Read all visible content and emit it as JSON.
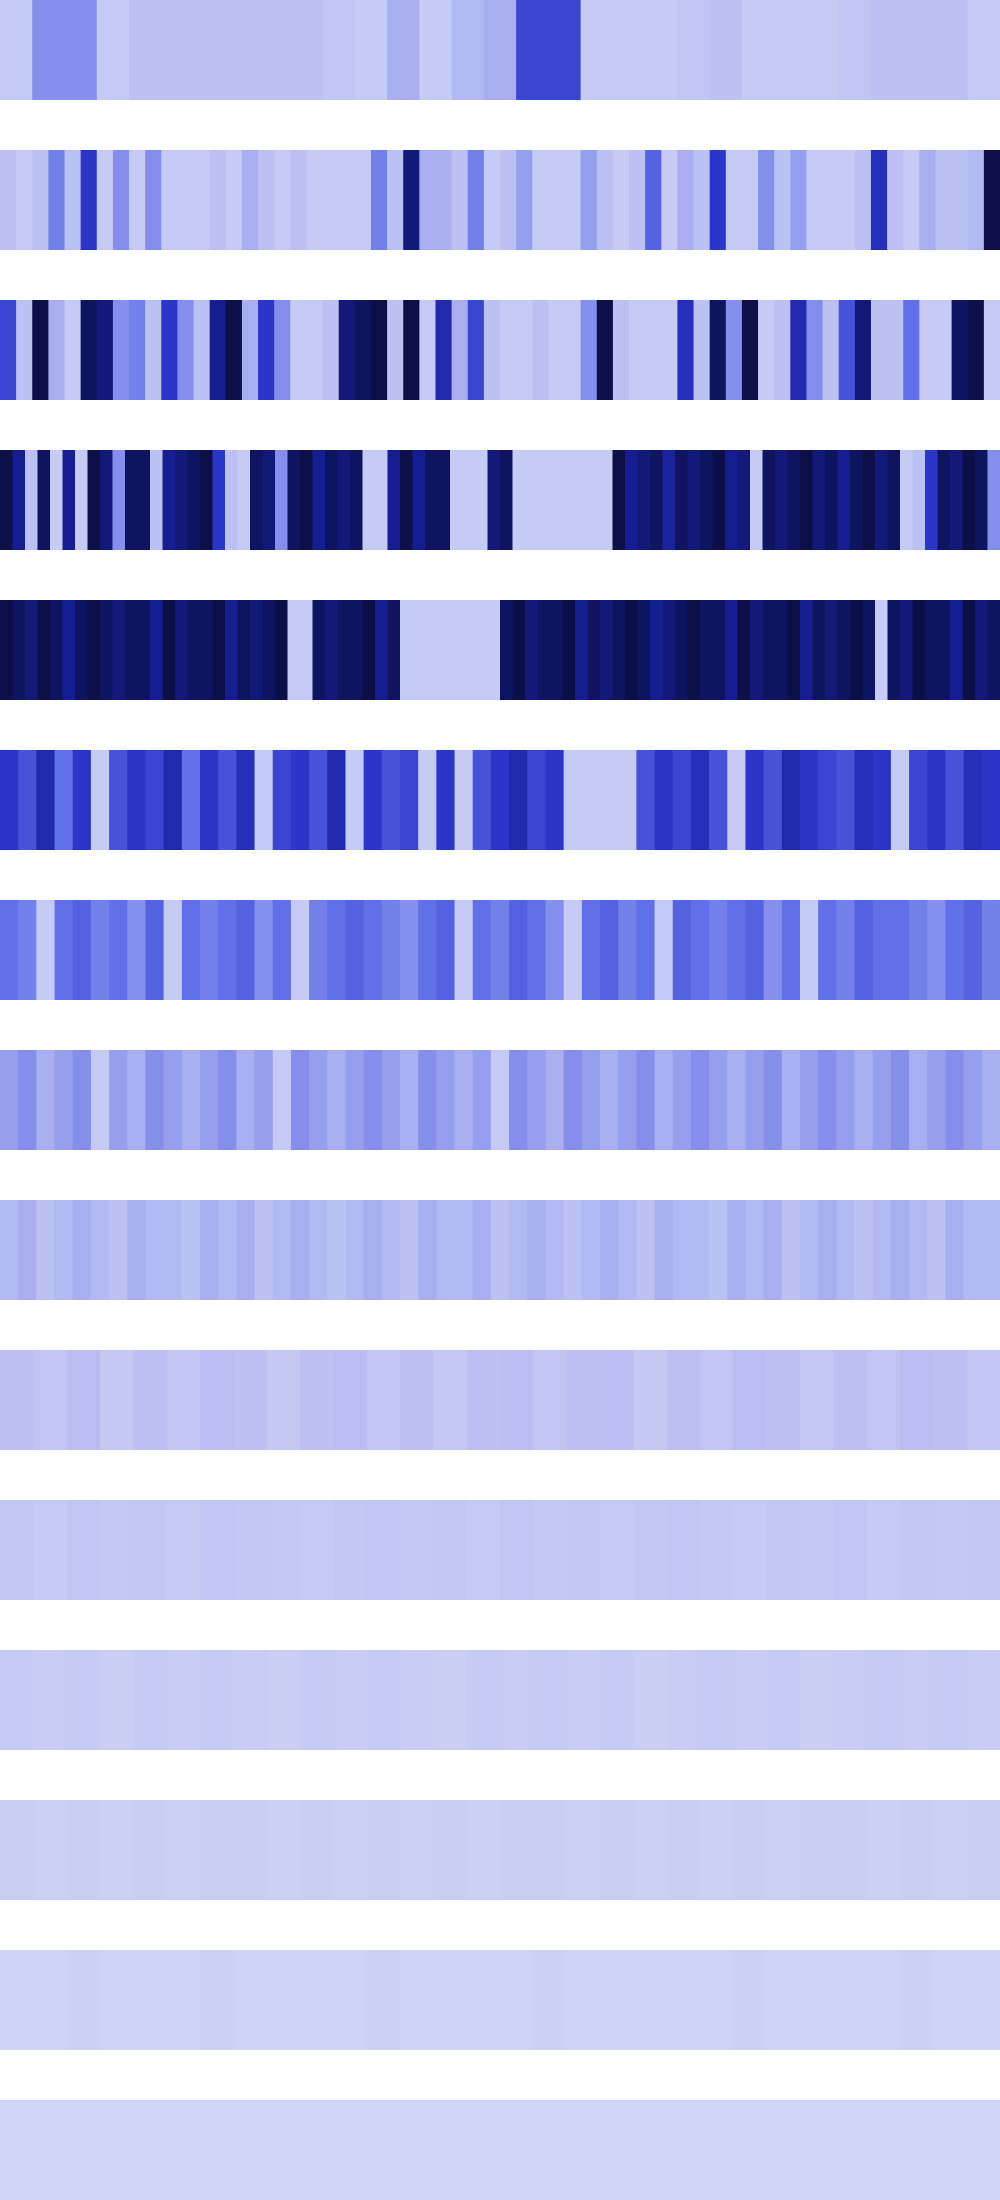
{
  "chart_data": {
    "type": "heatmap",
    "vmin": 0,
    "vmax": 1,
    "colorscale": [
      "#d0d4f6",
      "#a8aef0",
      "#6070e8",
      "#2a36c8",
      "#141e90",
      "#0a0a30"
    ],
    "rows": [
      {
        "values": [
          0.05,
          0.3,
          0.3,
          0.05,
          0.1,
          0.1,
          0.1,
          0.1,
          0.1,
          0.1,
          0.08,
          0.05,
          0.2,
          0.05,
          0.15,
          0.2,
          0.55,
          0.55,
          0.05,
          0.05,
          0.05,
          0.08,
          0.1,
          0.05,
          0.05,
          0.05,
          0.08,
          0.1,
          0.1,
          0.1,
          0.05
        ]
      },
      {
        "values": [
          0.1,
          0.05,
          0.1,
          0.35,
          0.1,
          0.6,
          0.05,
          0.3,
          0.05,
          0.3,
          0.05,
          0.05,
          0.05,
          0.1,
          0.05,
          0.2,
          0.1,
          0.05,
          0.1,
          0.05,
          0.05,
          0.05,
          0.05,
          0.35,
          0.1,
          0.85,
          0.2,
          0.2,
          0.1,
          0.35,
          0.05,
          0.1,
          0.25,
          0.05,
          0.05,
          0.05,
          0.25,
          0.1,
          0.05,
          0.1,
          0.45,
          0.05,
          0.2,
          0.1,
          0.6,
          0.05,
          0.05,
          0.3,
          0.1,
          0.25,
          0.05,
          0.05,
          0.05,
          0.1,
          0.65,
          0.1,
          0.05,
          0.2,
          0.1,
          0.1,
          0.15,
          0.95
        ]
      },
      {
        "values": [
          0.55,
          0.1,
          0.95,
          0.2,
          0.05,
          0.9,
          0.85,
          0.3,
          0.35,
          0.1,
          0.6,
          0.3,
          0.1,
          0.8,
          0.95,
          0.2,
          0.6,
          0.3,
          0.05,
          0.05,
          0.1,
          0.85,
          0.9,
          0.95,
          0.1,
          0.95,
          0.05,
          0.7,
          0.2,
          0.55,
          0.1,
          0.05,
          0.05,
          0.1,
          0.05,
          0.05,
          0.3,
          0.95,
          0.1,
          0.05,
          0.05,
          0.05,
          0.65,
          0.1,
          0.9,
          0.3,
          0.95,
          0.05,
          0.1,
          0.7,
          0.3,
          0.1,
          0.5,
          0.85,
          0.1,
          0.1,
          0.4,
          0.05,
          0.05,
          0.9,
          0.95,
          0.05
        ]
      },
      {
        "values": [
          0.95,
          0.8,
          0.1,
          0.9,
          0.05,
          0.8,
          0.05,
          0.95,
          0.85,
          0.3,
          0.9,
          0.9,
          0.1,
          0.8,
          0.85,
          0.9,
          0.95,
          0.6,
          0.1,
          0.05,
          0.9,
          0.85,
          0.3,
          0.9,
          0.95,
          0.8,
          0.9,
          0.85,
          0.9,
          0.05,
          0.05,
          0.8,
          0.95,
          0.8,
          0.9,
          0.9,
          0.05,
          0.05,
          0.05,
          0.85,
          0.9,
          0.05,
          0.05,
          0.05,
          0.05,
          0.05,
          0.05,
          0.05,
          0.05,
          0.95,
          0.8,
          0.85,
          0.9,
          0.75,
          0.9,
          0.85,
          0.9,
          0.95,
          0.8,
          0.85,
          0.05,
          0.9,
          0.85,
          0.9,
          0.95,
          0.85,
          0.9,
          0.8,
          0.9,
          0.95,
          0.85,
          0.9,
          0.05,
          0.1,
          0.6,
          0.9,
          0.85,
          0.95,
          0.9,
          0.3
        ]
      },
      {
        "values": [
          0.95,
          0.9,
          0.85,
          0.95,
          0.9,
          0.8,
          0.9,
          0.95,
          0.9,
          0.85,
          0.9,
          0.9,
          0.8,
          0.95,
          0.85,
          0.9,
          0.9,
          0.95,
          0.8,
          0.9,
          0.85,
          0.9,
          0.95,
          0.05,
          0.05,
          0.9,
          0.85,
          0.9,
          0.9,
          0.95,
          0.8,
          0.9,
          0.05,
          0.05,
          0.05,
          0.05,
          0.05,
          0.05,
          0.05,
          0.05,
          0.9,
          0.95,
          0.85,
          0.9,
          0.9,
          0.95,
          0.8,
          0.9,
          0.85,
          0.9,
          0.95,
          0.9,
          0.8,
          0.85,
          0.9,
          0.95,
          0.9,
          0.9,
          0.8,
          0.95,
          0.85,
          0.9,
          0.9,
          0.95,
          0.8,
          0.9,
          0.85,
          0.9,
          0.95,
          0.9,
          0.05,
          0.9,
          0.85,
          0.95,
          0.9,
          0.9,
          0.8,
          0.95,
          0.85,
          0.9
        ]
      },
      {
        "values": [
          0.6,
          0.5,
          0.7,
          0.4,
          0.6,
          0.05,
          0.5,
          0.6,
          0.55,
          0.7,
          0.4,
          0.6,
          0.5,
          0.65,
          0.05,
          0.55,
          0.6,
          0.5,
          0.7,
          0.05,
          0.6,
          0.5,
          0.55,
          0.05,
          0.6,
          0.05,
          0.5,
          0.6,
          0.7,
          0.55,
          0.6,
          0.05,
          0.05,
          0.05,
          0.05,
          0.5,
          0.6,
          0.55,
          0.65,
          0.5,
          0.05,
          0.6,
          0.5,
          0.7,
          0.6,
          0.55,
          0.5,
          0.65,
          0.6,
          0.05,
          0.55,
          0.6,
          0.5,
          0.65,
          0.6
        ]
      },
      {
        "values": [
          0.4,
          0.35,
          0.05,
          0.4,
          0.45,
          0.35,
          0.4,
          0.3,
          0.45,
          0.05,
          0.4,
          0.35,
          0.4,
          0.45,
          0.3,
          0.4,
          0.05,
          0.35,
          0.4,
          0.45,
          0.4,
          0.35,
          0.3,
          0.4,
          0.45,
          0.05,
          0.4,
          0.35,
          0.45,
          0.4,
          0.3,
          0.05,
          0.4,
          0.45,
          0.35,
          0.4,
          0.05,
          0.45,
          0.4,
          0.35,
          0.4,
          0.45,
          0.3,
          0.4,
          0.05,
          0.4,
          0.35,
          0.45,
          0.4,
          0.4,
          0.35,
          0.3,
          0.4,
          0.45,
          0.35
        ]
      },
      {
        "values": [
          0.25,
          0.3,
          0.2,
          0.25,
          0.3,
          0.05,
          0.25,
          0.2,
          0.3,
          0.25,
          0.2,
          0.25,
          0.3,
          0.2,
          0.25,
          0.05,
          0.3,
          0.25,
          0.2,
          0.25,
          0.3,
          0.25,
          0.2,
          0.3,
          0.25,
          0.2,
          0.25,
          0.05,
          0.3,
          0.25,
          0.2,
          0.3,
          0.25,
          0.2,
          0.25,
          0.3,
          0.2,
          0.25,
          0.3,
          0.25,
          0.2,
          0.25,
          0.3,
          0.2,
          0.25,
          0.3,
          0.25,
          0.2,
          0.25,
          0.3,
          0.2,
          0.25,
          0.3,
          0.25,
          0.2
        ]
      },
      {
        "values": [
          0.15,
          0.2,
          0.1,
          0.15,
          0.2,
          0.15,
          0.1,
          0.2,
          0.15,
          0.15,
          0.1,
          0.2,
          0.15,
          0.2,
          0.1,
          0.15,
          0.2,
          0.15,
          0.1,
          0.15,
          0.2,
          0.15,
          0.1,
          0.2,
          0.15,
          0.15,
          0.2,
          0.1,
          0.15,
          0.2,
          0.15,
          0.1,
          0.15,
          0.2,
          0.15,
          0.1,
          0.2,
          0.15,
          0.15,
          0.1,
          0.2,
          0.15,
          0.2,
          0.1,
          0.15,
          0.2,
          0.15,
          0.1,
          0.15,
          0.2,
          0.15,
          0.1,
          0.2,
          0.15,
          0.15
        ]
      },
      {
        "values": [
          0.1,
          0.08,
          0.12,
          0.06,
          0.1,
          0.08,
          0.12,
          0.1,
          0.06,
          0.1,
          0.12,
          0.08,
          0.1,
          0.06,
          0.1,
          0.12,
          0.08,
          0.1,
          0.12,
          0.06,
          0.1,
          0.08,
          0.12,
          0.1,
          0.06,
          0.1,
          0.08,
          0.12,
          0.1,
          0.08
        ]
      },
      {
        "values": [
          0.07,
          0.05,
          0.08,
          0.06,
          0.07,
          0.05,
          0.08,
          0.07,
          0.06,
          0.05,
          0.07,
          0.08,
          0.06,
          0.07,
          0.05,
          0.08,
          0.06,
          0.07,
          0.05,
          0.07,
          0.08,
          0.06,
          0.05,
          0.07,
          0.06,
          0.08,
          0.05,
          0.07,
          0.06,
          0.07
        ]
      },
      {
        "values": [
          0.05,
          0.04,
          0.05,
          0.03,
          0.05,
          0.04,
          0.05,
          0.04,
          0.03,
          0.05,
          0.04,
          0.05,
          0.04,
          0.03,
          0.05,
          0.04,
          0.05,
          0.04,
          0.05,
          0.03,
          0.04,
          0.05,
          0.04,
          0.05,
          0.03,
          0.04,
          0.05,
          0.04,
          0.05,
          0.04
        ]
      },
      {
        "values": [
          0.03,
          0.02,
          0.03,
          0.02,
          0.03,
          0.02,
          0.03,
          0.03,
          0.02,
          0.03,
          0.02,
          0.03,
          0.02,
          0.03,
          0.02,
          0.03,
          0.03,
          0.02,
          0.03,
          0.02,
          0.03,
          0.02,
          0.03,
          0.02,
          0.03,
          0.03,
          0.02,
          0.03,
          0.02,
          0.03
        ]
      },
      {
        "values": [
          0.01,
          0.01,
          0.02,
          0.01,
          0.01,
          0.01,
          0.02,
          0.01,
          0.01,
          0.01,
          0.01,
          0.02,
          0.01,
          0.01,
          0.01,
          0.01,
          0.02,
          0.01,
          0.01,
          0.01,
          0.01,
          0.01,
          0.02,
          0.01,
          0.01,
          0.01,
          0.01,
          0.02,
          0.01,
          0.01
        ]
      },
      {
        "values": [
          0,
          0,
          0,
          0,
          0,
          0,
          0,
          0,
          0,
          0,
          0,
          0,
          0,
          0,
          0,
          0,
          0,
          0,
          0,
          0,
          0,
          0,
          0,
          0,
          0,
          0,
          0,
          0,
          0,
          0
        ]
      }
    ]
  }
}
